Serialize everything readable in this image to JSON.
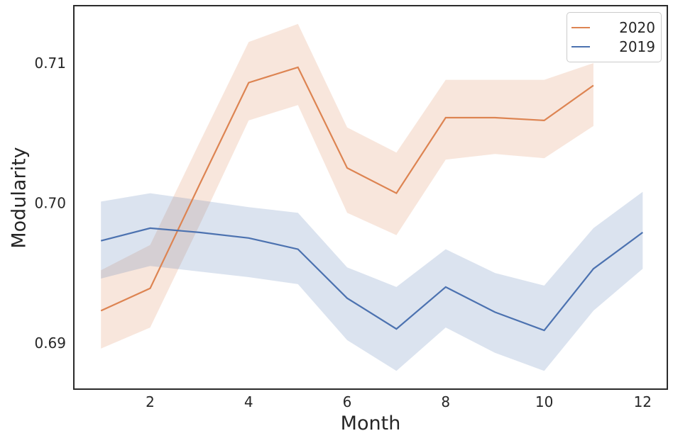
{
  "chart_data": {
    "type": "line",
    "title": "",
    "xlabel": "Month",
    "ylabel": "Modularity",
    "grid": false,
    "legend_position": "upper right",
    "xlim": [
      0.45,
      12.5
    ],
    "ylim": [
      0.6867,
      0.7141
    ],
    "xticks": [
      2,
      4,
      6,
      8,
      10,
      12
    ],
    "xtick_labels": [
      "2",
      "4",
      "6",
      "8",
      "10",
      "12"
    ],
    "yticks": [
      0.69,
      0.7,
      0.71
    ],
    "ytick_labels": [
      "0.69",
      "0.70",
      "0.71"
    ],
    "band_opacity": 0.2,
    "series": [
      {
        "name": "2020",
        "color": "#dd8452",
        "x": [
          1,
          2,
          3,
          4,
          5,
          6,
          7,
          8,
          9,
          10,
          11
        ],
        "values": [
          0.6923,
          0.6939,
          0.7013,
          0.7086,
          0.7097,
          0.7025,
          0.7007,
          0.7061,
          0.7061,
          0.7059,
          0.7084
        ],
        "ci_low": [
          0.6896,
          0.6911,
          0.6984,
          0.7059,
          0.707,
          0.6993,
          0.6977,
          0.7031,
          0.7035,
          0.7032,
          0.7055
        ],
        "ci_high": [
          0.6952,
          0.697,
          0.7043,
          0.7115,
          0.7128,
          0.7054,
          0.7036,
          0.7088,
          0.7088,
          0.7088,
          0.71
        ]
      },
      {
        "name": "2019",
        "color": "#4c72b0",
        "x": [
          1,
          2,
          3,
          4,
          5,
          6,
          7,
          8,
          9,
          10,
          11,
          12
        ],
        "values": [
          0.6973,
          0.6982,
          0.6979,
          0.6975,
          0.6967,
          0.6932,
          0.691,
          0.694,
          0.6922,
          0.6909,
          0.6953,
          0.6979
        ],
        "ci_low": [
          0.6946,
          0.6955,
          0.6951,
          0.6947,
          0.6942,
          0.6902,
          0.688,
          0.6911,
          0.6893,
          0.688,
          0.6923,
          0.6953
        ],
        "ci_high": [
          0.7001,
          0.7007,
          0.7002,
          0.6997,
          0.6993,
          0.6954,
          0.694,
          0.6967,
          0.695,
          0.6941,
          0.6982,
          0.7008
        ]
      }
    ],
    "legend": [
      "2020",
      "2019"
    ]
  },
  "colors": {
    "frame": "#2b2b2b",
    "text": "#262626",
    "background": "#ffffff",
    "legend_border": "#cbcbcb"
  }
}
